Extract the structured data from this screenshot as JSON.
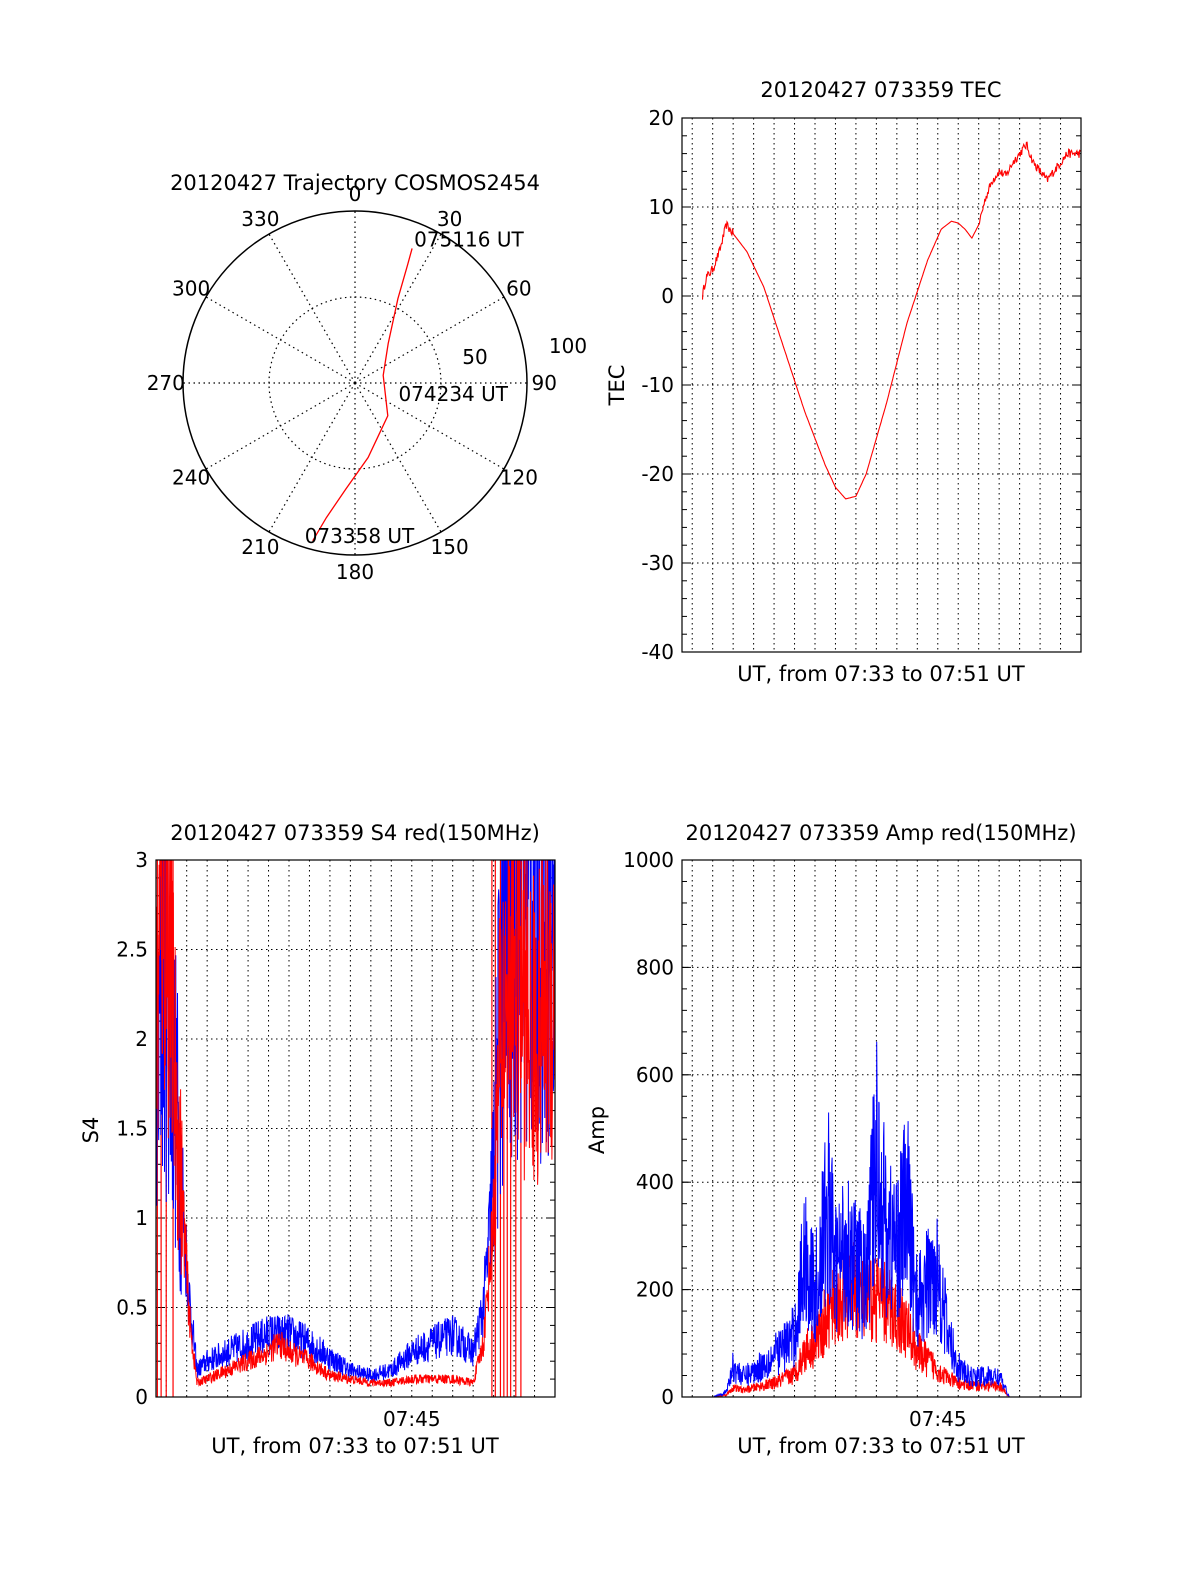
{
  "colors": {
    "series_red": "#ff0000",
    "series_blue": "#0000ff",
    "axis": "#000000",
    "grid": "#000000"
  },
  "chart_data": [
    {
      "id": "trajectory",
      "type": "polar",
      "title": "20120427 Trajectory COSMOS2454",
      "angle_labels": [
        "0",
        "30",
        "60",
        "90",
        "120",
        "150",
        "180",
        "210",
        "240",
        "270",
        "300",
        "330"
      ],
      "radial_labels": [
        "50",
        "100"
      ],
      "rlim": [
        0,
        100
      ],
      "grid": true,
      "trajectory": {
        "color": "red",
        "points": [
          {
            "az": 195,
            "r": 95
          },
          {
            "az": 192,
            "r": 80
          },
          {
            "az": 185,
            "r": 62
          },
          {
            "az": 170,
            "r": 44
          },
          {
            "az": 135,
            "r": 27
          },
          {
            "az": 75,
            "r": 17
          },
          {
            "az": 40,
            "r": 30
          },
          {
            "az": 27,
            "r": 55
          },
          {
            "az": 24,
            "r": 75
          },
          {
            "az": 23,
            "r": 85
          }
        ]
      },
      "annotations": [
        {
          "text": "075116 UT",
          "az": 23,
          "r": 85
        },
        {
          "text": "074234 UT",
          "az": 90,
          "r": 2
        },
        {
          "text": "073358 UT",
          "az": 195,
          "r": 95
        }
      ]
    },
    {
      "id": "tec",
      "type": "line",
      "title": "20120427 073359 TEC",
      "xlabel": "UT, from 07:33 to 07:51 UT",
      "ylabel": "TEC",
      "xlim": [
        "07:32:30",
        "07:52:00"
      ],
      "ylim": [
        -40,
        20
      ],
      "yticks": [
        -40,
        -30,
        -20,
        -10,
        0,
        10,
        20
      ],
      "xtick_labels": [],
      "grid": true,
      "series": [
        {
          "color": "red",
          "x": [
            "07:33:30",
            "07:33:40",
            "07:34:00",
            "07:34:20",
            "07:34:40",
            "07:35:00",
            "07:35:40",
            "07:36:30",
            "07:37:30",
            "07:38:30",
            "07:39:30",
            "07:40:00",
            "07:40:30",
            "07:41:00",
            "07:41:30",
            "07:42:30",
            "07:43:30",
            "07:44:30",
            "07:45:10",
            "07:45:40",
            "07:46:00",
            "07:46:20",
            "07:46:40",
            "07:47:00",
            "07:47:20",
            "07:47:40",
            "07:48:00",
            "07:48:20",
            "07:48:40",
            "07:49:00",
            "07:49:20",
            "07:49:40",
            "07:50:00",
            "07:50:20",
            "07:50:40",
            "07:51:00",
            "07:51:20",
            "07:51:40",
            "07:52:00"
          ],
          "y": [
            0,
            2,
            3,
            5,
            8,
            7,
            5,
            1,
            -6,
            -13,
            -19,
            -21.5,
            -22.8,
            -22.5,
            -20,
            -12,
            -3,
            4,
            7.5,
            8.4,
            8.2,
            7.5,
            6.5,
            8,
            11,
            13,
            14,
            13.5,
            15,
            16,
            17,
            15,
            14,
            13,
            14,
            15,
            16,
            16,
            16
          ]
        }
      ]
    },
    {
      "id": "s4",
      "type": "line",
      "title": "20120427 073359 S4 red(150MHz)",
      "xlabel": "UT, from 07:33 to 07:51 UT",
      "ylabel": "S4",
      "xlim": [
        "07:32:30",
        "07:52:00"
      ],
      "ylim": [
        0,
        3
      ],
      "yticks": [
        0,
        0.5,
        1,
        1.5,
        2,
        2.5,
        3
      ],
      "ytick_labels": [
        "0",
        "0.5",
        "1",
        "1.5",
        "2",
        "2.5",
        "3"
      ],
      "xtick_labels": [
        "07:45"
      ],
      "grid": true,
      "series": [
        {
          "color": "blue",
          "x": [
            "07:32:30",
            "07:32:50",
            "07:33:10",
            "07:33:30",
            "07:33:50",
            "07:34:10",
            "07:34:30",
            "07:35:00",
            "07:36:00",
            "07:37:00",
            "07:38:00",
            "07:38:30",
            "07:39:00",
            "07:40:00",
            "07:41:00",
            "07:42:00",
            "07:43:00",
            "07:44:00",
            "07:45:00",
            "07:46:00",
            "07:47:00",
            "07:48:00",
            "07:48:30",
            "07:49:00",
            "07:49:20",
            "07:49:40",
            "07:50:00",
            "07:50:30",
            "07:51:00",
            "07:51:30",
            "07:52:00"
          ],
          "y": [
            1.6,
            2.5,
            2.2,
            1.6,
            1.0,
            0.5,
            0.15,
            0.2,
            0.25,
            0.3,
            0.35,
            0.35,
            0.35,
            0.3,
            0.22,
            0.15,
            0.12,
            0.15,
            0.25,
            0.3,
            0.35,
            0.25,
            0.5,
            1.2,
            2.2,
            2.6,
            2.8,
            2.8,
            2.8,
            2.8,
            2.8
          ]
        },
        {
          "color": "red",
          "x": [
            "07:32:30",
            "07:32:50",
            "07:33:10",
            "07:33:30",
            "07:33:50",
            "07:34:10",
            "07:34:30",
            "07:35:00",
            "07:36:00",
            "07:37:00",
            "07:38:00",
            "07:38:30",
            "07:39:00",
            "07:40:00",
            "07:41:00",
            "07:42:00",
            "07:43:00",
            "07:44:00",
            "07:45:00",
            "07:46:00",
            "07:47:00",
            "07:48:00",
            "07:48:30",
            "07:49:00",
            "07:49:20",
            "07:49:40",
            "07:50:00",
            "07:50:30",
            "07:51:00",
            "07:51:30",
            "07:52:00"
          ],
          "y": [
            2.0,
            2.9,
            2.5,
            1.6,
            1.0,
            0.4,
            0.08,
            0.1,
            0.15,
            0.2,
            0.25,
            0.3,
            0.25,
            0.2,
            0.12,
            0.1,
            0.08,
            0.08,
            0.1,
            0.1,
            0.1,
            0.08,
            0.3,
            1.0,
            2.0,
            2.3,
            2.5,
            2.2,
            2.0,
            2.2,
            2.3
          ]
        }
      ]
    },
    {
      "id": "amp",
      "type": "line",
      "title": "20120427 073359 Amp red(150MHz)",
      "xlabel": "UT, from 07:33 to 07:51 UT",
      "ylabel": "Amp",
      "xlim": [
        "07:32:30",
        "07:52:00"
      ],
      "ylim": [
        0,
        1000
      ],
      "yticks": [
        0,
        200,
        400,
        600,
        800,
        1000
      ],
      "ytick_labels": [
        "0",
        "200",
        "400",
        "600",
        "800",
        "1000"
      ],
      "xtick_labels": [
        "07:45"
      ],
      "grid": true,
      "series": [
        {
          "color": "blue",
          "x": [
            "07:32:30",
            "07:34:00",
            "07:34:40",
            "07:35:00",
            "07:35:30",
            "07:36:00",
            "07:37:00",
            "07:38:00",
            "07:38:30",
            "07:39:00",
            "07:39:40",
            "07:40:00",
            "07:40:30",
            "07:41:00",
            "07:41:30",
            "07:42:00",
            "07:42:30",
            "07:43:00",
            "07:43:30",
            "07:44:00",
            "07:44:30",
            "07:45:00",
            "07:45:30",
            "07:46:00",
            "07:46:30",
            "07:47:00",
            "07:48:00",
            "07:48:30",
            "07:52:00"
          ],
          "y": [
            0,
            0,
            10,
            60,
            40,
            50,
            80,
            120,
            280,
            200,
            380,
            250,
            300,
            260,
            220,
            480,
            320,
            300,
            380,
            180,
            220,
            250,
            120,
            60,
            40,
            40,
            40,
            0,
            0
          ]
        },
        {
          "color": "red",
          "x": [
            "07:32:30",
            "07:34:00",
            "07:34:40",
            "07:35:00",
            "07:35:30",
            "07:36:00",
            "07:37:00",
            "07:38:00",
            "07:38:30",
            "07:39:00",
            "07:39:40",
            "07:40:00",
            "07:40:30",
            "07:41:00",
            "07:41:30",
            "07:42:00",
            "07:42:30",
            "07:43:00",
            "07:43:30",
            "07:44:00",
            "07:44:30",
            "07:45:00",
            "07:45:30",
            "07:46:00",
            "07:46:30",
            "07:47:00",
            "07:48:00",
            "07:48:30",
            "07:52:00"
          ],
          "y": [
            0,
            0,
            5,
            20,
            15,
            20,
            30,
            50,
            100,
            120,
            180,
            200,
            220,
            240,
            200,
            220,
            200,
            180,
            150,
            100,
            80,
            60,
            40,
            30,
            25,
            25,
            25,
            0,
            0
          ]
        }
      ]
    }
  ]
}
